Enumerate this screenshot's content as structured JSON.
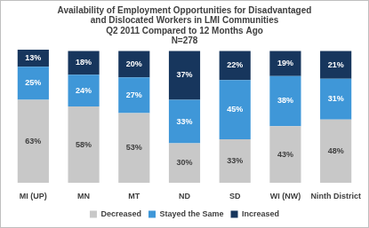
{
  "chart_data": {
    "type": "bar",
    "title": [
      "Availability of Employment Opportunities for Disadvantaged",
      "and Dislocated Workers in LMI Communities"
    ],
    "subtitle": [
      "Q2 2011 Compared to 12 Months Ago",
      "N=278"
    ],
    "categories": [
      "MI (UP)",
      "MN",
      "MT",
      "ND",
      "SD",
      "WI (NW)",
      "Ninth District"
    ],
    "series": [
      {
        "name": "Decreased",
        "color": "#c8c8c8",
        "values": [
          63,
          58,
          53,
          30,
          33,
          43,
          48
        ],
        "value_labels": [
          "63%",
          "58%",
          "53%",
          "30%",
          "33%",
          "43%",
          "48%"
        ]
      },
      {
        "name": "Stayed the Same",
        "color": "#3f97d8",
        "values": [
          25,
          24,
          27,
          33,
          45,
          38,
          31
        ],
        "value_labels": [
          "25%",
          "24%",
          "27%",
          "33%",
          "45%",
          "38%",
          "31%"
        ]
      },
      {
        "name": "Increased",
        "color": "#17365d",
        "values": [
          13,
          18,
          20,
          37,
          22,
          19,
          21
        ],
        "value_labels": [
          "13%",
          "18%",
          "20%",
          "37%",
          "22%",
          "19%",
          "21%"
        ]
      }
    ],
    "stacked": true,
    "data_labels": true,
    "legend": "bottom",
    "grid": false,
    "tick_labels": "x",
    "ylim": [
      0,
      101
    ]
  }
}
